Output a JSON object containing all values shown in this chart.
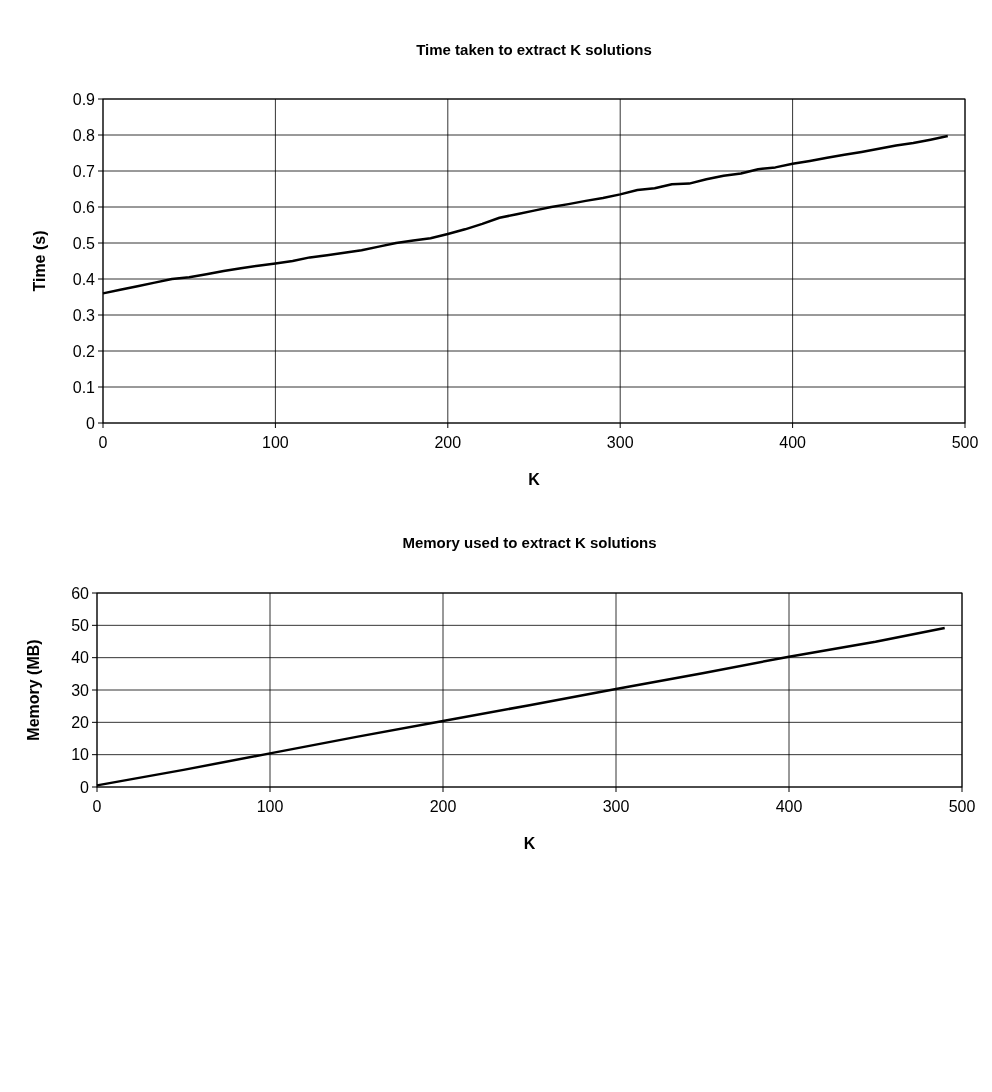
{
  "chart_data": [
    {
      "type": "line",
      "title": "Time taken to extract K solutions",
      "xlabel": "K",
      "ylabel": "Time (s)",
      "xlim": [
        0,
        500
      ],
      "xticks": [
        0,
        100,
        200,
        300,
        400,
        500
      ],
      "ylim": [
        0,
        0.9
      ],
      "yticks": [
        0,
        0.1,
        0.2,
        0.3,
        0.4,
        0.5,
        0.6,
        0.7,
        0.8,
        0.9
      ],
      "grid": true,
      "series": [
        {
          "color": "#000000",
          "x": [
            0,
            10,
            20,
            30,
            40,
            50,
            60,
            70,
            80,
            90,
            100,
            110,
            120,
            130,
            140,
            150,
            160,
            170,
            180,
            190,
            200,
            210,
            220,
            230,
            240,
            250,
            260,
            270,
            280,
            290,
            300,
            310,
            320,
            330,
            340,
            350,
            360,
            370,
            380,
            390,
            400,
            410,
            420,
            430,
            440,
            450,
            460,
            470,
            480,
            490
          ],
          "values": [
            0.36,
            0.37,
            0.38,
            0.39,
            0.4,
            0.405,
            0.413,
            0.422,
            0.43,
            0.437,
            0.443,
            0.45,
            0.46,
            0.466,
            0.473,
            0.48,
            0.49,
            0.5,
            0.507,
            0.513,
            0.525,
            0.538,
            0.553,
            0.57,
            0.58,
            0.59,
            0.6,
            0.608,
            0.617,
            0.625,
            0.635,
            0.647,
            0.652,
            0.663,
            0.665,
            0.677,
            0.687,
            0.693,
            0.705,
            0.71,
            0.72,
            0.728,
            0.737,
            0.745,
            0.753,
            0.762,
            0.771,
            0.778,
            0.787,
            0.797
          ]
        }
      ]
    },
    {
      "type": "line",
      "title": "Memory used to extract K solutions",
      "xlabel": "K",
      "ylabel": "Memory (MB)",
      "xlim": [
        0,
        500
      ],
      "xticks": [
        0,
        100,
        200,
        300,
        400,
        500
      ],
      "ylim": [
        0,
        60
      ],
      "yticks": [
        0,
        10,
        20,
        30,
        40,
        50,
        60
      ],
      "grid": true,
      "series": [
        {
          "color": "#000000",
          "x": [
            0,
            50,
            100,
            150,
            200,
            250,
            300,
            350,
            400,
            450,
            490
          ],
          "values": [
            0.5,
            5.3,
            10.4,
            15.5,
            20.4,
            25.3,
            30.3,
            35.2,
            40.3,
            44.9,
            49.2
          ]
        }
      ]
    }
  ]
}
